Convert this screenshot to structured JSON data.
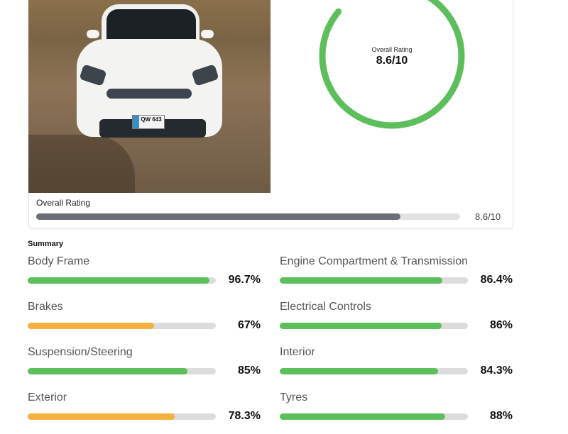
{
  "photo": {
    "alt": "White Kia car front view",
    "plate": "QW 643"
  },
  "ring": {
    "label": "Overall Rating",
    "value": "8.6/10",
    "score": 8.6,
    "max": 10,
    "color": "#5cbf5c"
  },
  "overall_bar": {
    "label": "Overall Rating",
    "value": "8.6/10",
    "percent": 86,
    "color": "#6b6e78"
  },
  "summary": {
    "title": "Summary",
    "items": [
      {
        "label": "Body Frame",
        "value": "96.7%",
        "percent": 96.7,
        "color": "#5cbf5c"
      },
      {
        "label": "Engine Compartment & Transmission",
        "value": "86.4%",
        "percent": 86.4,
        "color": "#5cbf5c"
      },
      {
        "label": "Brakes",
        "value": "67%",
        "percent": 67,
        "color": "#f5b040"
      },
      {
        "label": "Electrical Controls",
        "value": "86%",
        "percent": 86,
        "color": "#5cbf5c"
      },
      {
        "label": "Suspension/Steering",
        "value": "85%",
        "percent": 85,
        "color": "#5cbf5c"
      },
      {
        "label": "Interior",
        "value": "84.3%",
        "percent": 84.3,
        "color": "#5cbf5c"
      },
      {
        "label": "Exterior",
        "value": "78.3%",
        "percent": 78.3,
        "color": "#f5b040"
      },
      {
        "label": "Tyres",
        "value": "88%",
        "percent": 88,
        "color": "#5cbf5c"
      }
    ]
  }
}
